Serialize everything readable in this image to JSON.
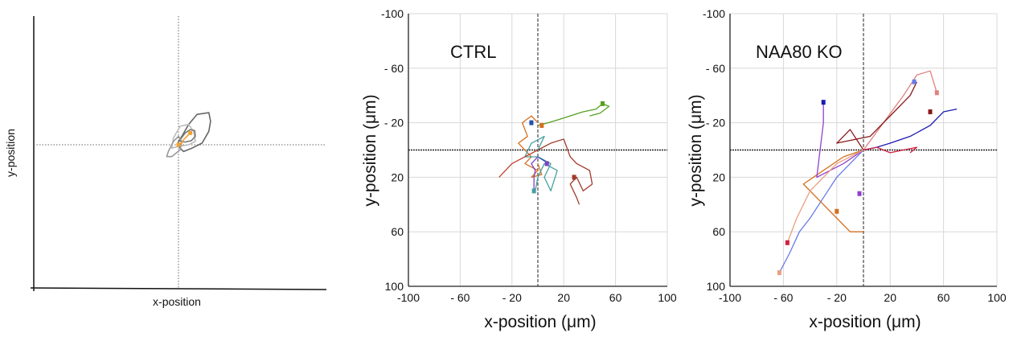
{
  "chart_data": [
    {
      "type": "diagram",
      "title": "",
      "xlabel": "x-position",
      "ylabel": "y-position",
      "center": [
        0,
        0
      ],
      "contours": [
        {
          "name": "outer-gray",
          "color": "#666666",
          "points": [
            [
              0,
              -10
            ],
            [
              10,
              -25
            ],
            [
              30,
              -60
            ],
            [
              55,
              -90
            ],
            [
              90,
              -95
            ],
            [
              95,
              -70
            ],
            [
              90,
              -40
            ],
            [
              70,
              -5
            ],
            [
              40,
              10
            ],
            [
              15,
              20
            ],
            [
              0,
              5
            ]
          ]
        },
        {
          "name": "light-outer",
          "color": "#bbbbbb",
          "points": [
            [
              -20,
              10
            ],
            [
              -15,
              -20
            ],
            [
              5,
              -55
            ],
            [
              30,
              -60
            ],
            [
              45,
              -40
            ],
            [
              50,
              -10
            ],
            [
              30,
              0
            ],
            [
              0,
              5
            ]
          ]
        },
        {
          "name": "mid-gray",
          "color": "#777777",
          "points": [
            [
              5,
              -15
            ],
            [
              20,
              -35
            ],
            [
              35,
              -45
            ],
            [
              48,
              -42
            ],
            [
              50,
              -25
            ],
            [
              38,
              -12
            ],
            [
              20,
              -8
            ],
            [
              5,
              -10
            ]
          ]
        },
        {
          "name": "small-gray",
          "color": "#999999",
          "points": [
            [
              -30,
              20
            ],
            [
              -15,
              -10
            ],
            [
              0,
              -25
            ],
            [
              10,
              -10
            ],
            [
              5,
              15
            ],
            [
              -20,
              35
            ],
            [
              -35,
              35
            ]
          ]
        }
      ],
      "trajectory": {
        "color": "#f0a030",
        "points": [
          [
            0,
            0
          ],
          [
            10,
            -5
          ],
          [
            15,
            -15
          ],
          [
            20,
            -20
          ],
          [
            25,
            -25
          ],
          [
            30,
            -30
          ],
          [
            35,
            -35
          ]
        ]
      }
    },
    {
      "type": "line",
      "title": "CTRL",
      "xlabel": "x-position (μm)",
      "ylabel": "y-position (μm)",
      "xlim": [
        -100,
        100
      ],
      "ylim": [
        -100,
        100
      ],
      "y_inverted": true,
      "xticks": [
        -100,
        -60,
        -20,
        20,
        60,
        100
      ],
      "xticklabels": [
        "-100",
        "- 60",
        "- 20",
        "20",
        "60",
        "100"
      ],
      "yticks": [
        -100,
        -60,
        -20,
        20,
        60,
        100
      ],
      "yticklabels": [
        "-100",
        "- 60",
        "- 20",
        "20",
        "60",
        "100"
      ],
      "origin_lines": true,
      "series": [
        {
          "name": "green",
          "color": "#55a020",
          "points": [
            [
              0,
              -18
            ],
            [
              8,
              -20
            ],
            [
              15,
              -22
            ],
            [
              25,
              -25
            ],
            [
              35,
              -28
            ],
            [
              45,
              -30
            ],
            [
              50,
              -34
            ],
            [
              55,
              -32
            ],
            [
              48,
              -27
            ],
            [
              40,
              -25
            ]
          ]
        },
        {
          "name": "orange",
          "color": "#d4701f",
          "points": [
            [
              0,
              -20
            ],
            [
              -5,
              -25
            ],
            [
              -12,
              -20
            ],
            [
              -8,
              -10
            ],
            [
              -15,
              -5
            ],
            [
              -5,
              5
            ],
            [
              -10,
              10
            ],
            [
              0,
              15
            ],
            [
              -5,
              20
            ],
            [
              3,
              18
            ],
            [
              0,
              10
            ]
          ]
        },
        {
          "name": "brown",
          "color": "#a03a2a",
          "points": [
            [
              0,
              0
            ],
            [
              10,
              -5
            ],
            [
              20,
              -8
            ],
            [
              25,
              5
            ],
            [
              30,
              10
            ],
            [
              40,
              15
            ],
            [
              42,
              25
            ],
            [
              35,
              30
            ],
            [
              30,
              20
            ],
            [
              25,
              25
            ],
            [
              30,
              35
            ],
            [
              32,
              40
            ]
          ]
        },
        {
          "name": "teal",
          "color": "#45a0a0",
          "points": [
            [
              0,
              0
            ],
            [
              5,
              -10
            ],
            [
              -5,
              -5
            ],
            [
              -10,
              5
            ],
            [
              0,
              5
            ],
            [
              10,
              10
            ],
            [
              5,
              20
            ],
            [
              10,
              30
            ],
            [
              15,
              15
            ],
            [
              5,
              10
            ],
            [
              0,
              20
            ],
            [
              -2,
              30
            ]
          ]
        },
        {
          "name": "purple",
          "color": "#8040c0",
          "points": [
            [
              0,
              5
            ],
            [
              -5,
              10
            ],
            [
              -2,
              15
            ],
            [
              -3,
              20
            ],
            [
              -3,
              30
            ]
          ]
        },
        {
          "name": "blue",
          "color": "#2050b0",
          "points": [
            [
              0,
              5
            ],
            [
              5,
              8
            ],
            [
              8,
              10
            ],
            [
              7,
              10
            ]
          ]
        },
        {
          "name": "red-left",
          "color": "#c04030",
          "points": [
            [
              0,
              0
            ],
            [
              -10,
              5
            ],
            [
              -20,
              10
            ],
            [
              -25,
              15
            ],
            [
              -30,
              20
            ]
          ]
        }
      ],
      "endpoints": [
        [
          50,
          -34
        ],
        [
          3,
          -18
        ],
        [
          28,
          20
        ],
        [
          -3,
          30
        ],
        [
          7,
          10
        ],
        [
          -5,
          -20
        ]
      ]
    },
    {
      "type": "line",
      "title": "NAA80 KO",
      "xlabel": "x-position (μm)",
      "ylabel": "y-position (μm)",
      "xlim": [
        -100,
        100
      ],
      "ylim": [
        -100,
        100
      ],
      "y_inverted": true,
      "xticks": [
        -100,
        -60,
        -20,
        20,
        60,
        100
      ],
      "xticklabels": [
        "-100",
        "- 60",
        "- 20",
        "20",
        "60",
        "100"
      ],
      "yticks": [
        -100,
        -60,
        -20,
        20,
        60,
        100
      ],
      "yticklabels": [
        "-100",
        "- 60",
        "- 20",
        "20",
        "60",
        "100"
      ],
      "origin_lines": true,
      "series": [
        {
          "name": "dark-blue",
          "color": "#1a1ab0",
          "points": [
            [
              0,
              0
            ],
            [
              10,
              -2
            ],
            [
              20,
              -5
            ],
            [
              35,
              -10
            ],
            [
              50,
              -18
            ],
            [
              60,
              -28
            ],
            [
              70,
              -30
            ]
          ]
        },
        {
          "name": "light-blue",
          "color": "#6a7ae8",
          "points": [
            [
              0,
              0
            ],
            [
              -10,
              10
            ],
            [
              -20,
              20
            ],
            [
              -30,
              35
            ],
            [
              -40,
              50
            ],
            [
              -48,
              60
            ],
            [
              -55,
              75
            ],
            [
              -63,
              90
            ]
          ]
        },
        {
          "name": "pink",
          "color": "#e08080",
          "points": [
            [
              0,
              0
            ],
            [
              15,
              -20
            ],
            [
              30,
              -40
            ],
            [
              40,
              -55
            ],
            [
              50,
              -58
            ],
            [
              55,
              -42
            ]
          ]
        },
        {
          "name": "dark-red",
          "color": "#8a1a1a",
          "points": [
            [
              0,
              0
            ],
            [
              -10,
              -15
            ],
            [
              -20,
              -5
            ],
            [
              5,
              -10
            ],
            [
              20,
              -25
            ],
            [
              35,
              -40
            ],
            [
              40,
              -50
            ]
          ]
        },
        {
          "name": "orange",
          "color": "#d4701f",
          "points": [
            [
              0,
              0
            ],
            [
              -15,
              5
            ],
            [
              -30,
              15
            ],
            [
              -45,
              25
            ],
            [
              -30,
              40
            ],
            [
              -20,
              50
            ],
            [
              -10,
              60
            ],
            [
              0,
              60
            ]
          ]
        },
        {
          "name": "purple",
          "color": "#9040d0",
          "points": [
            [
              0,
              0
            ],
            [
              -15,
              10
            ],
            [
              -25,
              15
            ],
            [
              -35,
              20
            ],
            [
              -30,
              -20
            ],
            [
              -30,
              -35
            ]
          ]
        },
        {
          "name": "red",
          "color": "#d02040",
          "points": [
            [
              0,
              0
            ],
            [
              10,
              -2
            ],
            [
              20,
              2
            ],
            [
              30,
              0
            ],
            [
              40,
              -2
            ],
            [
              35,
              2
            ]
          ]
        },
        {
          "name": "salmon",
          "color": "#e8a080",
          "points": [
            [
              0,
              0
            ],
            [
              -20,
              10
            ],
            [
              -40,
              30
            ],
            [
              -50,
              50
            ],
            [
              -57,
              68
            ]
          ]
        }
      ],
      "endpoints": [
        [
          -30,
          -35
        ],
        [
          38,
          -50
        ],
        [
          55,
          -42
        ],
        [
          50,
          -28
        ],
        [
          -20,
          45
        ],
        [
          -3,
          32
        ],
        [
          -57,
          68
        ],
        [
          -63,
          90
        ]
      ]
    }
  ]
}
